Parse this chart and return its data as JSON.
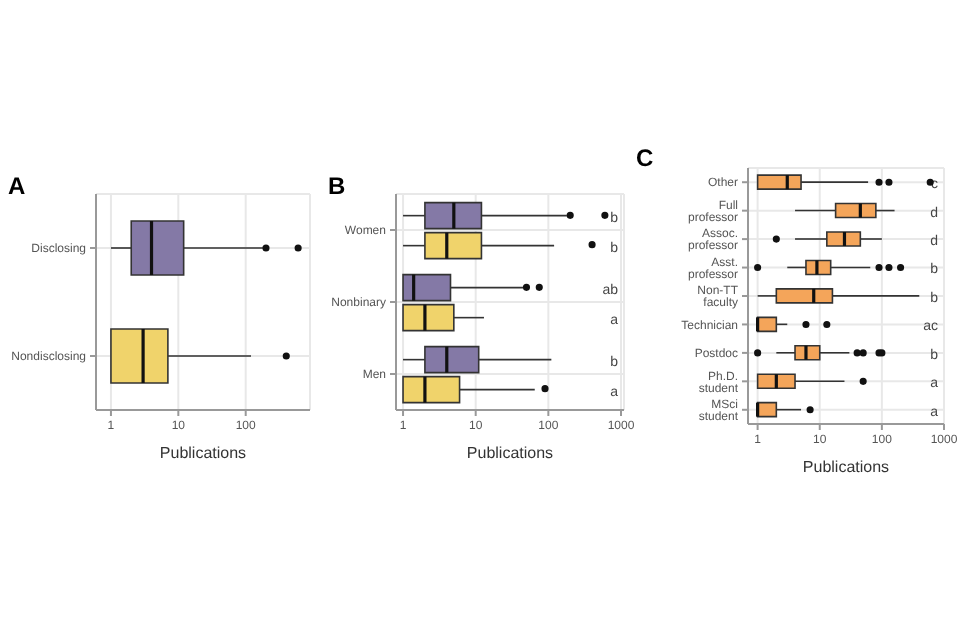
{
  "chart_data": [
    {
      "type": "box",
      "orientation": "horizontal",
      "title": "A",
      "xlabel": "Publications",
      "categories": [
        "Disclosing",
        "Nondisclosing"
      ],
      "colors": [
        "#8479a6",
        "#f0d36b"
      ],
      "log": "x",
      "xlim": [
        0.6,
        900
      ],
      "xticks": [
        1,
        10,
        100
      ],
      "grid": true,
      "boxes": [
        {
          "low": 1,
          "q1": 2,
          "median": 4,
          "q3": 12,
          "high": 180,
          "outliers": [
            200,
            600
          ]
        },
        {
          "low": 1,
          "q1": 1,
          "median": 3,
          "q3": 7,
          "high": 120,
          "outliers": [
            400
          ]
        }
      ]
    },
    {
      "type": "box",
      "orientation": "horizontal",
      "title": "B",
      "xlabel": "Publications",
      "categories": [
        "Women",
        "Nonbinary",
        "Men"
      ],
      "log": "x",
      "xlim": [
        0.8,
        1100
      ],
      "xticks": [
        1,
        10,
        100,
        1000
      ],
      "grid": true,
      "series": [
        {
          "color": "#8479a6",
          "boxes": [
            {
              "low": 1,
              "q1": 2,
              "median": 5,
              "q3": 12,
              "high": 180,
              "outliers": [
                200,
                600
              ]
            },
            {
              "low": 1,
              "q1": 1,
              "median": 1.4,
              "q3": 4.5,
              "high": 45,
              "outliers": [
                50,
                75
              ]
            },
            {
              "low": 1,
              "q1": 2,
              "median": 4,
              "q3": 11,
              "high": 110
            }
          ]
        },
        {
          "color": "#f0d36b",
          "boxes": [
            {
              "low": 1,
              "q1": 2,
              "median": 4,
              "q3": 12,
              "high": 120,
              "outliers": [
                400
              ]
            },
            {
              "low": 1,
              "q1": 1,
              "median": 2,
              "q3": 5,
              "high": 13
            },
            {
              "low": 1,
              "q1": 1,
              "median": 2,
              "q3": 6,
              "high": 65,
              "outliers": [
                90
              ]
            }
          ]
        }
      ],
      "annotations": [
        "b",
        "b",
        "ab",
        "a",
        "b",
        "a"
      ]
    },
    {
      "type": "box",
      "orientation": "horizontal",
      "title": "C",
      "xlabel": "Publications",
      "categories": [
        "Other",
        "Full professor",
        "Assoc. professor",
        "Asst. professor",
        "Non-TT faculty",
        "Technician",
        "Postdoc",
        "Ph.D. student",
        "MSci student"
      ],
      "log": "x",
      "xlim": [
        0.7,
        1000
      ],
      "xticks": [
        1,
        10,
        100,
        1000
      ],
      "grid": true,
      "series": [
        {
          "color": "#f4a55a",
          "boxes": [
            {
              "low": 1,
              "q1": 1,
              "median": 3,
              "q3": 5,
              "high": 60,
              "outliers": [
                90,
                130,
                600
              ]
            },
            {
              "low": 4,
              "q1": 18,
              "median": 45,
              "q3": 80,
              "high": 160
            },
            {
              "low": 4,
              "q1": 13,
              "median": 25,
              "q3": 45,
              "high": 100,
              "outliers": [
                2
              ]
            },
            {
              "low": 3,
              "q1": 6,
              "median": 9,
              "q3": 15,
              "high": 65,
              "outliers": [
                1,
                90,
                130,
                200
              ]
            },
            {
              "low": 1,
              "q1": 2,
              "median": 8,
              "q3": 16,
              "high": 400
            },
            {
              "low": 1,
              "q1": 1,
              "median": 1,
              "q3": 2,
              "high": 3,
              "outliers": [
                6,
                13
              ]
            },
            {
              "low": 2,
              "q1": 4,
              "median": 6,
              "q3": 10,
              "high": 30,
              "outliers": [
                1,
                40,
                50,
                90,
                100
              ]
            },
            {
              "low": 1,
              "q1": 1,
              "median": 2,
              "q3": 4,
              "high": 25,
              "outliers": [
                50
              ]
            },
            {
              "low": 1,
              "q1": 1,
              "median": 1,
              "q3": 2,
              "high": 5,
              "outliers": [
                7
              ]
            }
          ]
        }
      ],
      "annotations": [
        "c",
        "d",
        "d",
        "b",
        "b",
        "ac",
        "b",
        "a",
        "a"
      ]
    }
  ]
}
